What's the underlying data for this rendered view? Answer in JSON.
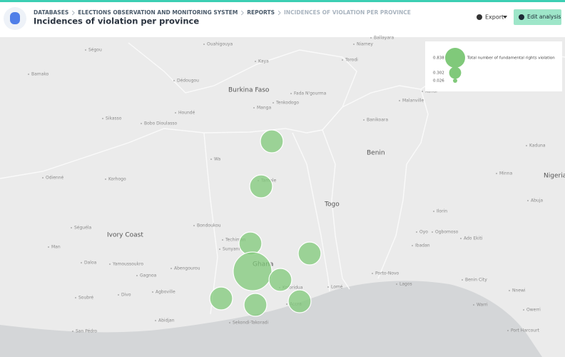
{
  "header": {
    "breadcrumb": [
      "DATABASES",
      "ELECTIONS OBSERVATION AND MONITORING SYSTEM",
      "REPORTS",
      "INCIDENCES OF VIOLATION PER PROVINCE"
    ],
    "title": "Incidences of violation per province",
    "export": "Export",
    "edit": "Edit analysis"
  },
  "legend": {
    "title": "Total number of fundamental rights violation",
    "values": [
      0.838,
      0.302,
      0.026
    ]
  },
  "map": {
    "countries": [
      "Burkina Faso",
      "Benin",
      "Togo",
      "Ivory Coast",
      "Ghana",
      "Nigeria"
    ],
    "places": [
      "Ségou",
      "Bamako",
      "Ouahigouya",
      "Kaya",
      "Dédougou",
      "Niamey",
      "Torodi",
      "Ballayara",
      "Fada N'gourma",
      "Tenkodogo",
      "Manga",
      "Sikasso",
      "Bobo Dioulasso",
      "Houndé",
      "Banikoara",
      "Malanville",
      "Kandi",
      "Wa",
      "Tamale",
      "Korhogo",
      "Odienné",
      "Séguéla",
      "Man",
      "Daloa",
      "Yamoussoukro",
      "Bondoukou",
      "Techiman",
      "Sunyani",
      "Abengourou",
      "Agboville",
      "Abidjan",
      "Divo",
      "Gagnoa",
      "Soubré",
      "San Pédro",
      "Sekondi-Takoradi",
      "Accra",
      "Koforidua",
      "Lomé",
      "Porto-Novo",
      "Lagos",
      "Ibadan",
      "Ilorin",
      "Oyo",
      "Ogbomoso",
      "Ado Ekiti",
      "Benin City",
      "Warri",
      "Port Harcourt",
      "Abuja",
      "Minna",
      "Kaduna",
      "Nnewi",
      "Owerri"
    ],
    "bubbles": [
      1.09,
      1.09,
      1.09,
      1.09,
      3.13,
      1.09,
      1.09,
      1.09,
      1.09
    ]
  }
}
